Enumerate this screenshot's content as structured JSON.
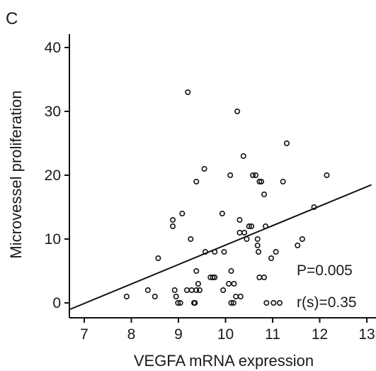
{
  "panel_label": "C",
  "chart_data": {
    "type": "scatter",
    "xlabel": "VEGFA mRNA expression",
    "ylabel": "Microvessel proliferation",
    "xlim": [
      6.7,
      13.1
    ],
    "ylim": [
      -1,
      42
    ],
    "xticks": [
      7,
      8,
      9,
      10,
      11,
      12,
      13
    ],
    "yticks": [
      0,
      10,
      20,
      30,
      40
    ],
    "grid": false,
    "annotations": [
      "P=0.005",
      "r(s)=0.35"
    ],
    "regression_line": {
      "x": [
        6.7,
        13.1
      ],
      "y": [
        -1.0,
        18.5
      ]
    },
    "points": [
      {
        "x": 7.9,
        "y": 1
      },
      {
        "x": 8.35,
        "y": 2
      },
      {
        "x": 8.5,
        "y": 1
      },
      {
        "x": 8.57,
        "y": 7
      },
      {
        "x": 8.92,
        "y": 2
      },
      {
        "x": 8.95,
        "y": 1
      },
      {
        "x": 8.99,
        "y": 0
      },
      {
        "x": 9.04,
        "y": 0
      },
      {
        "x": 8.88,
        "y": 12
      },
      {
        "x": 8.88,
        "y": 13
      },
      {
        "x": 9.08,
        "y": 14
      },
      {
        "x": 9.18,
        "y": 2
      },
      {
        "x": 9.2,
        "y": 33
      },
      {
        "x": 9.26,
        "y": 10
      },
      {
        "x": 9.28,
        "y": 2
      },
      {
        "x": 9.33,
        "y": 0
      },
      {
        "x": 9.35,
        "y": 0
      },
      {
        "x": 9.38,
        "y": 19
      },
      {
        "x": 9.38,
        "y": 5
      },
      {
        "x": 9.42,
        "y": 3
      },
      {
        "x": 9.38,
        "y": 2
      },
      {
        "x": 9.45,
        "y": 2
      },
      {
        "x": 9.55,
        "y": 21
      },
      {
        "x": 9.57,
        "y": 8
      },
      {
        "x": 9.68,
        "y": 4
      },
      {
        "x": 9.73,
        "y": 4
      },
      {
        "x": 9.77,
        "y": 4
      },
      {
        "x": 9.77,
        "y": 8
      },
      {
        "x": 9.93,
        "y": 14
      },
      {
        "x": 9.97,
        "y": 8
      },
      {
        "x": 9.95,
        "y": 2
      },
      {
        "x": 10.07,
        "y": 3
      },
      {
        "x": 10.1,
        "y": 20
      },
      {
        "x": 10.12,
        "y": 5
      },
      {
        "x": 10.12,
        "y": 0
      },
      {
        "x": 10.17,
        "y": 0
      },
      {
        "x": 10.18,
        "y": 3
      },
      {
        "x": 10.22,
        "y": 1
      },
      {
        "x": 10.25,
        "y": 30
      },
      {
        "x": 10.3,
        "y": 13
      },
      {
        "x": 10.3,
        "y": 11
      },
      {
        "x": 10.32,
        "y": 1
      },
      {
        "x": 10.38,
        "y": 23
      },
      {
        "x": 10.4,
        "y": 11
      },
      {
        "x": 10.45,
        "y": 10
      },
      {
        "x": 10.5,
        "y": 12
      },
      {
        "x": 10.55,
        "y": 12
      },
      {
        "x": 10.58,
        "y": 20
      },
      {
        "x": 10.64,
        "y": 20
      },
      {
        "x": 10.68,
        "y": 10
      },
      {
        "x": 10.68,
        "y": 9
      },
      {
        "x": 10.7,
        "y": 8
      },
      {
        "x": 10.72,
        "y": 19
      },
      {
        "x": 10.76,
        "y": 19
      },
      {
        "x": 10.72,
        "y": 4
      },
      {
        "x": 10.82,
        "y": 4
      },
      {
        "x": 10.82,
        "y": 17
      },
      {
        "x": 10.85,
        "y": 12
      },
      {
        "x": 10.87,
        "y": 0
      },
      {
        "x": 10.97,
        "y": 7
      },
      {
        "x": 11.02,
        "y": 0
      },
      {
        "x": 11.07,
        "y": 8
      },
      {
        "x": 11.15,
        "y": 0
      },
      {
        "x": 11.22,
        "y": 19
      },
      {
        "x": 11.3,
        "y": 25
      },
      {
        "x": 11.53,
        "y": 9
      },
      {
        "x": 11.63,
        "y": 10
      },
      {
        "x": 11.88,
        "y": 15
      },
      {
        "x": 12.15,
        "y": 20
      }
    ]
  }
}
